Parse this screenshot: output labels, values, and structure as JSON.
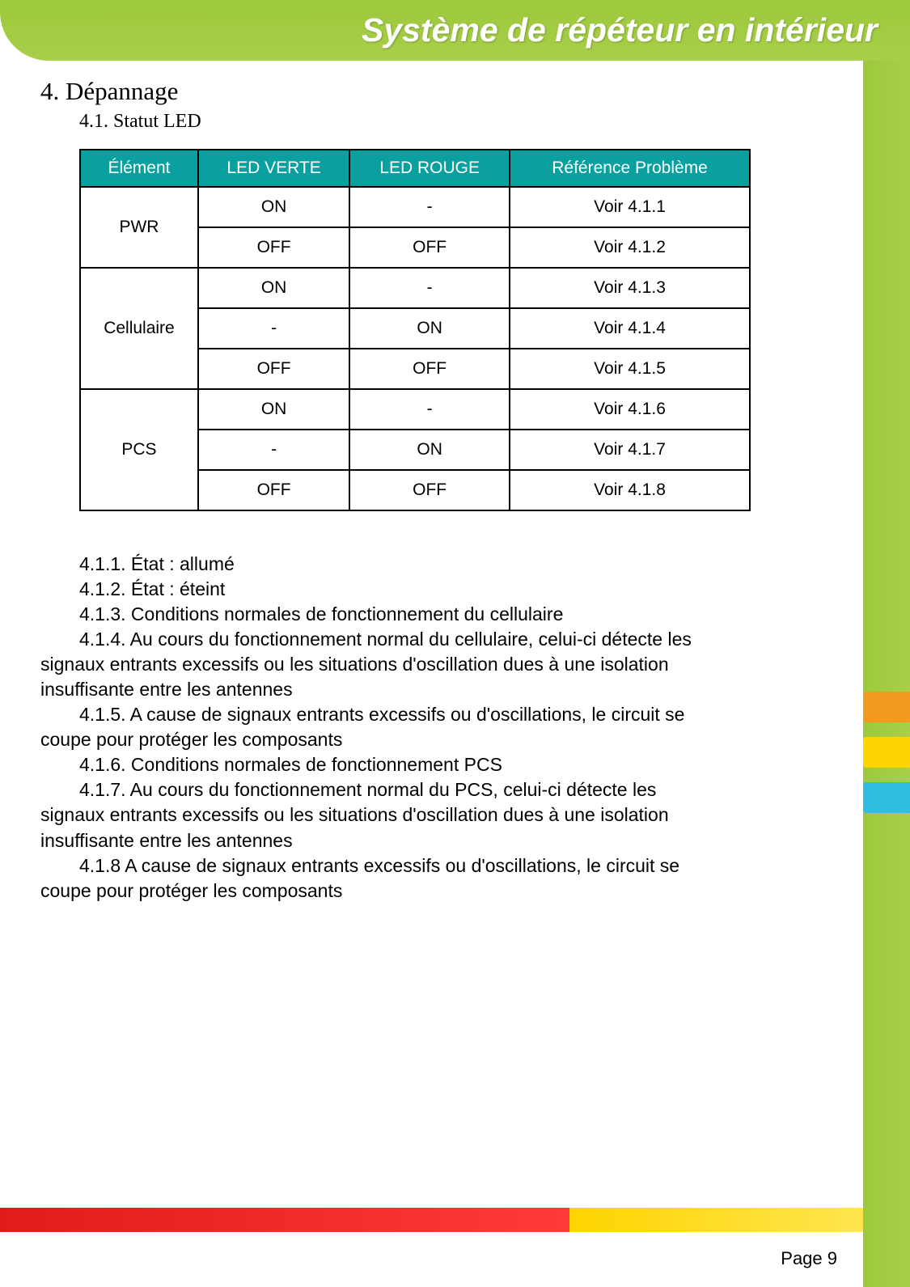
{
  "banner": {
    "title": "Système de répéteur en intérieur",
    "top_bar_color": "#9cc93c",
    "right_bar_color": "#9cc93c"
  },
  "side_tabs": {
    "tab1_color": "#f39a1f",
    "tab2_color": "#ffd400",
    "tab3_color": "#2fbde0"
  },
  "section": {
    "heading": "4. Dépannage",
    "subheading": "4.1.  Statut LED"
  },
  "table": {
    "header_bg": "#0aa0a0",
    "header_text_color": "#ffffff",
    "border_color": "#000000",
    "columns": [
      "Élément",
      "LED VERTE",
      "LED ROUGE",
      "Référence Problème"
    ],
    "groups": [
      {
        "label": "PWR",
        "rows": [
          {
            "green": "ON",
            "red": "-",
            "ref": "Voir 4.1.1"
          },
          {
            "green": "OFF",
            "red": "OFF",
            "ref": "Voir 4.1.2"
          }
        ]
      },
      {
        "label": "Cellulaire",
        "rows": [
          {
            "green": "ON",
            "red": "-",
            "ref": "Voir 4.1.3"
          },
          {
            "green": "-",
            "red": "ON",
            "ref": "Voir 4.1.4"
          },
          {
            "green": "OFF",
            "red": "OFF",
            "ref": "Voir 4.1.5"
          }
        ]
      },
      {
        "label": "PCS",
        "rows": [
          {
            "green": "ON",
            "red": "-",
            "ref": "Voir 4.1.6"
          },
          {
            "green": "-",
            "red": "ON",
            "ref": "Voir 4.1.7"
          },
          {
            "green": "OFF",
            "red": "OFF",
            "ref": "Voir 4.1.8"
          }
        ]
      }
    ]
  },
  "notes": {
    "n1": "4.1.1.  État : allumé",
    "n2": "4.1.2.  État : éteint",
    "n3": "4.1.3. Conditions normales de fonctionnement du cellulaire",
    "n4a": "4.1.4.  Au cours du fonctionnement normal du cellulaire, celui-ci détecte les",
    "n4b": "signaux entrants excessifs ou les situations d'oscillation dues à une isolation",
    "n4c": "insuffisante entre les antennes",
    "n5a": "4.1.5.  A cause de signaux entrants excessifs ou d'oscillations, le circuit se",
    "n5b": "coupe pour protéger les composants",
    "n6": "4.1.6. Conditions normales de fonctionnement PCS",
    "n7a": "4.1.7. Au cours du fonctionnement normal du PCS, celui-ci détecte les",
    "n7b": "signaux entrants excessifs ou les situations d'oscillation dues à une isolation",
    "n7c": "insuffisante entre les antennes",
    "n8a": "4.1.8 A cause de signaux entrants excessifs ou d'oscillations, le circuit se",
    "n8b": "coupe pour protéger les composants"
  },
  "bottom_bar": {
    "red_color": "#e11b1b",
    "yellow_color": "#ffd400"
  },
  "footer": {
    "page_label": "Page 9"
  }
}
